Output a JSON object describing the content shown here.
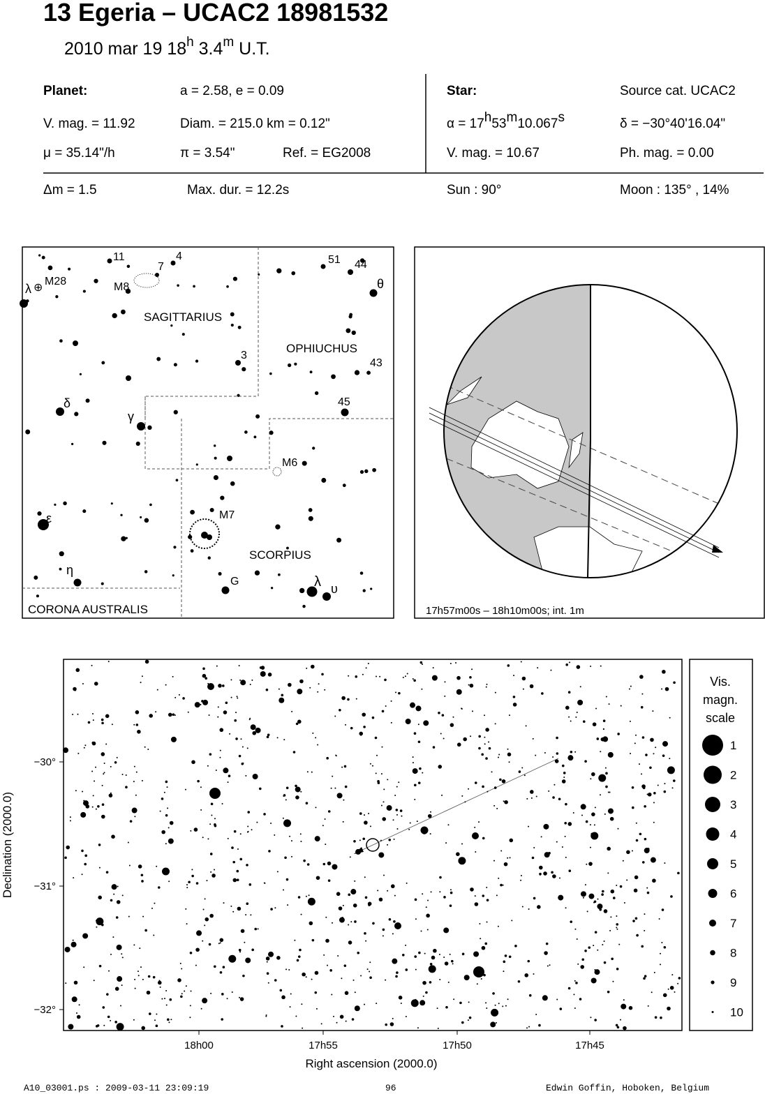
{
  "header": {
    "title": "13 Egeria  –  UCAC2 18981532",
    "date_parts": [
      "2010 mar 19  18",
      "h",
      " 3.4",
      "m",
      " U.T."
    ]
  },
  "planet": {
    "label": "Planet:",
    "orbit": "a = 2.58, e = 0.09",
    "vmag": "V. mag. = 11.92",
    "diam": "Diam. = 215.0 km = 0.12\"",
    "mu": "μ =  35.14\"/h",
    "pi": "π =  3.54\"",
    "ref": "Ref. = EG2008"
  },
  "star": {
    "label": "Star:",
    "source": "Source cat.  UCAC2",
    "ra_parts": [
      "α = 17",
      "h",
      "53",
      "m",
      "10.067",
      "s"
    ],
    "dec": "δ = −30°40'16.04\"",
    "vmag": "V. mag. = 10.67",
    "phmag": "Ph. mag. =  0.00"
  },
  "circumstances": {
    "dm": "Δm = 1.5",
    "maxdur": "Max. dur. = 12.2s",
    "sun": "Sun :  90°",
    "moon": "Moon : 135° , 14%"
  },
  "finder": {
    "labels": [
      "11",
      "4",
      "7",
      "M8",
      "λ",
      "⊕",
      "M28",
      "SAGITTARIUS",
      "51",
      "44",
      "θ",
      "3",
      "OPHIUCHUS",
      "43",
      "45",
      "δ",
      "γ",
      "M6",
      "ε",
      "M7",
      "SCORPIUS",
      "η",
      "G",
      "λ",
      "υ",
      "CORONA AUSTRALIS"
    ]
  },
  "globe": {
    "caption": "17h57m00s – 18h10m00s; int.  1m"
  },
  "star_chart": {
    "x_label": "Right ascension (2000.0)",
    "y_label": "Declination (2000.0)",
    "x_ticks": [
      "18h00",
      "17h55",
      "17h50",
      "17h45"
    ],
    "y_ticks": [
      "−30°",
      "−31°",
      "−32°"
    ]
  },
  "legend": {
    "title_lines": [
      "Vis.",
      "magn.",
      "scale"
    ],
    "magnitudes": [
      1,
      2,
      3,
      4,
      5,
      6,
      7,
      8,
      9,
      10
    ]
  },
  "footer": {
    "file": "A10_03001.ps : 2009-03-11 23:09:19",
    "page": "96",
    "author": "Edwin Goffin, Hoboken, Belgium"
  }
}
